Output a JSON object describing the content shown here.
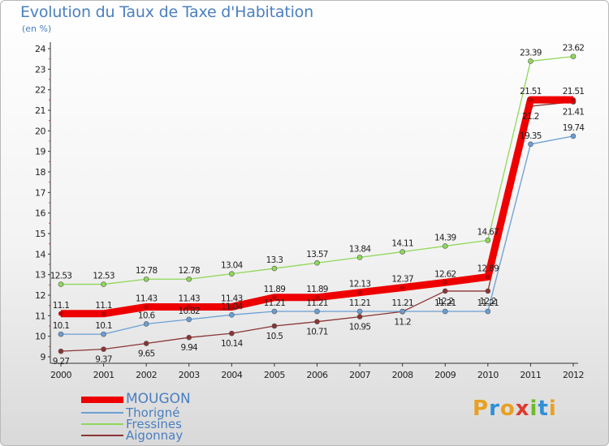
{
  "title": "Evolution du Taux de Taxe d'Habitation",
  "subtitle": "(en %)",
  "logo": {
    "letters": [
      "P",
      "r",
      "o",
      "x",
      "i",
      "t",
      "i"
    ],
    "colors": [
      "#e8a020",
      "#2f8fd6",
      "#e8a020",
      "#e03a2e",
      "#6cbb2b",
      "#2f8fd6",
      "#e8a020"
    ]
  },
  "chart_data": {
    "type": "line",
    "title": "Evolution du Taux de Taxe d'Habitation",
    "ylabel": "(en %)",
    "xlabel": "",
    "x": [
      "2000",
      "2001",
      "2002",
      "2003",
      "2004",
      "2005",
      "2006",
      "2007",
      "2008",
      "2009",
      "2010",
      "2011",
      "2012"
    ],
    "ylim": [
      9,
      24
    ],
    "yticks": [
      9,
      10,
      11,
      12,
      13,
      14,
      15,
      16,
      17,
      18,
      19,
      20,
      21,
      22,
      23,
      24
    ],
    "grid": false,
    "legend_position": "bottom-left",
    "series": [
      {
        "name": "MOUGON",
        "color": "#ee0000",
        "values": [
          11.1,
          11.1,
          11.43,
          11.43,
          11.43,
          11.89,
          11.89,
          12.13,
          12.37,
          12.62,
          12.89,
          21.51,
          21.51
        ],
        "labels": [
          "11.1",
          "11.1",
          "11.43",
          "11.43",
          "11.43",
          "11.89",
          "11.89",
          "12.13",
          "12.37",
          "12.62",
          "12.89",
          "21.51",
          "21.51"
        ]
      },
      {
        "name": "Thorigné",
        "color": "#6a9fd4",
        "values": [
          10.1,
          10.1,
          10.6,
          10.82,
          11.04,
          11.21,
          11.21,
          11.21,
          11.21,
          11.21,
          11.21,
          19.35,
          19.74
        ],
        "labels": [
          "10.1",
          "10.1",
          "10.6",
          "10.82",
          "11.04",
          "11.21",
          "11.21",
          "11.21",
          "11.21",
          "11.21",
          "11.21",
          "19.35",
          "19.74"
        ]
      },
      {
        "name": "Fressines",
        "color": "#8fd85a",
        "values": [
          12.53,
          12.53,
          12.78,
          12.78,
          13.04,
          13.3,
          13.57,
          13.84,
          14.11,
          14.39,
          14.67,
          23.39,
          23.62
        ],
        "labels": [
          "12.53",
          "12.53",
          "12.78",
          "12.78",
          "13.04",
          "13.3",
          "13.57",
          "13.84",
          "14.11",
          "14.39",
          "14.67",
          "23.39",
          "23.62"
        ]
      },
      {
        "name": "Aigonnay",
        "color": "#8b3434",
        "values": [
          9.27,
          9.37,
          9.65,
          9.94,
          10.14,
          10.5,
          10.71,
          10.95,
          11.2,
          12.2,
          12.2,
          21.2,
          21.41
        ],
        "labels": [
          "9.27",
          "9.37",
          "9.65",
          "9.94",
          "10.14",
          "10.5",
          "10.71",
          "10.95",
          "11.2",
          "12.2",
          "12.2",
          "21.2",
          "21.41"
        ]
      }
    ]
  }
}
